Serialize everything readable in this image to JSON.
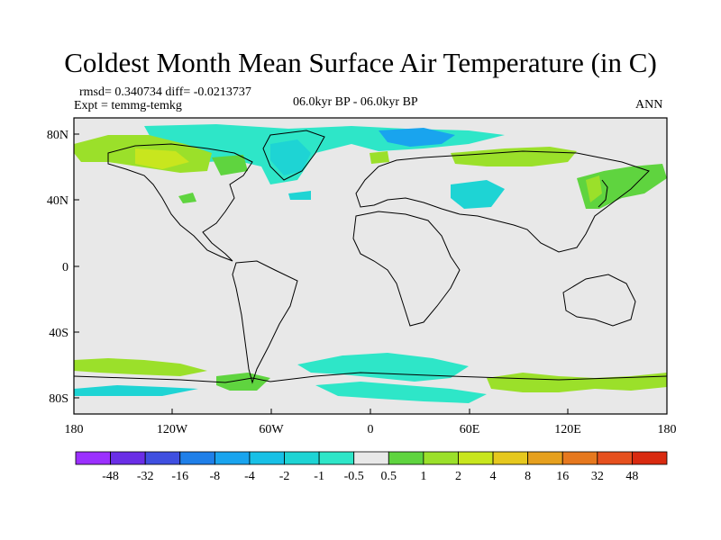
{
  "header": {
    "title": "Coldest Month Mean Surface Air Temperature (in C)",
    "stats": "rmsd= 0.340734  diff= -0.0213737",
    "experiment": "Expt = temmg-temkg",
    "period": "06.0kyr BP - 06.0kyr BP",
    "season": "ANN"
  },
  "map": {
    "lat_labels": [
      "80N",
      "40N",
      "0",
      "40S",
      "80S"
    ],
    "lon_labels": [
      "180",
      "120W",
      "60W",
      "0",
      "60E",
      "120E",
      "180"
    ],
    "ocean_color": "#e8e8e8",
    "coast_color": "#000000"
  },
  "colorbar": {
    "labels": [
      "-48",
      "-32",
      "-16",
      "-8",
      "-4",
      "-2",
      "-1",
      "-0.5",
      "0.5",
      "1",
      "2",
      "4",
      "8",
      "16",
      "32",
      "48"
    ],
    "colors": [
      "#9b30ff",
      "#6a2ee6",
      "#3f4fe0",
      "#1f7fe8",
      "#19a4ee",
      "#18c0e6",
      "#1ed4d4",
      "#2ee6c8",
      "#e8e8e8",
      "#5fd43f",
      "#9be02a",
      "#c8e61e",
      "#e6c81e",
      "#e6a01e",
      "#e6781e",
      "#e6501e",
      "#d92a10"
    ]
  }
}
